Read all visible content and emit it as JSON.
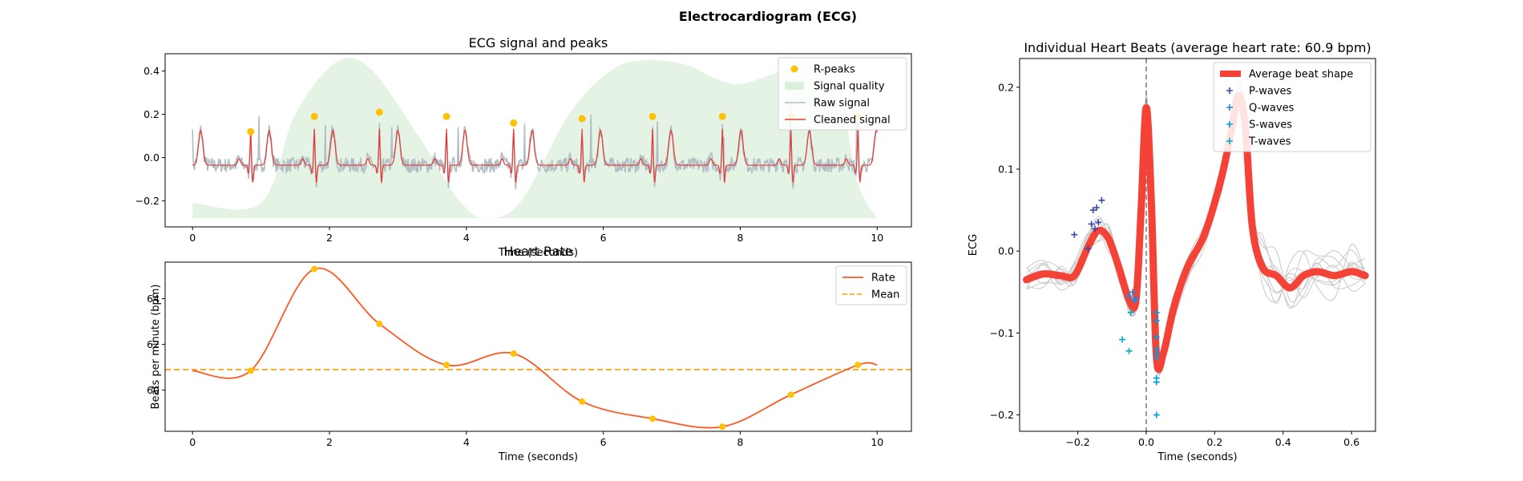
{
  "figure": {
    "title": "Electrocardiogram (ECG)"
  },
  "chart_data": [
    {
      "id": "ecg",
      "type": "line",
      "title": "ECG signal and peaks",
      "xlabel": "Time (seconds)",
      "ylabel": "",
      "xlim": [
        -0.4,
        10.5
      ],
      "ylim": [
        -0.32,
        0.48
      ],
      "xticks": [
        0,
        2,
        4,
        6,
        8,
        10
      ],
      "yticks": [
        -0.2,
        0.0,
        0.2,
        0.4
      ],
      "xtick_labels": [
        "0",
        "2",
        "4",
        "6",
        "8",
        "10"
      ],
      "ytick_labels": [
        "−0.2",
        "0.0",
        "0.2",
        "0.4"
      ],
      "legend": {
        "position": "upper right",
        "entries": [
          "R-peaks",
          "Signal quality",
          "Raw signal",
          "Cleaned signal"
        ]
      },
      "colors": {
        "r_peaks": "#FFC107",
        "quality": "#DCEFDC",
        "raw": "#B0BEC5",
        "cleaned": "#E53935"
      },
      "r_peaks": {
        "x": [
          0.85,
          1.78,
          2.73,
          3.71,
          4.69,
          5.69,
          6.72,
          7.74,
          8.74,
          9.72
        ],
        "y": [
          0.12,
          0.19,
          0.21,
          0.19,
          0.16,
          0.18,
          0.19,
          0.19,
          0.19,
          0.19
        ]
      },
      "quality_shape": {
        "x": [
          0.0,
          1.0,
          1.5,
          2.1,
          2.6,
          3.3,
          3.9,
          4.3,
          4.8,
          5.5,
          6.1,
          6.6,
          7.2,
          7.6,
          8.0,
          8.6,
          9.0,
          9.4,
          9.7,
          10.0
        ],
        "y": [
          -0.21,
          -0.21,
          0.2,
          0.44,
          0.41,
          0.1,
          -0.2,
          -0.28,
          -0.2,
          0.2,
          0.4,
          0.45,
          0.43,
          0.37,
          0.34,
          0.4,
          0.44,
          0.4,
          -0.1,
          -0.28
        ]
      }
    },
    {
      "id": "rate",
      "type": "line",
      "title": "Heart Rate",
      "xlabel": "Time (seconds)",
      "ylabel": "Beats per minute (bpm)",
      "xlim": [
        -0.4,
        10.5
      ],
      "ylim": [
        58.2,
        65.6
      ],
      "xticks": [
        0,
        2,
        4,
        6,
        8,
        10
      ],
      "yticks": [
        60,
        62,
        64
      ],
      "xtick_labels": [
        "0",
        "2",
        "4",
        "6",
        "8",
        "10"
      ],
      "ytick_labels": [
        "60",
        "62",
        "64"
      ],
      "legend": {
        "position": "upper right",
        "entries": [
          "Rate",
          "Mean"
        ]
      },
      "colors": {
        "rate": "#FF5722",
        "mean": "#FF9800",
        "markers": "#FFC107"
      },
      "mean": 60.9,
      "series": [
        {
          "name": "Rate",
          "x": [
            0.0,
            0.85,
            1.78,
            2.73,
            3.71,
            4.69,
            5.69,
            6.72,
            7.74,
            8.74,
            9.72,
            10.0
          ],
          "y": [
            60.85,
            60.85,
            65.3,
            62.9,
            61.1,
            61.6,
            59.5,
            58.75,
            58.4,
            59.8,
            61.1,
            61.1
          ]
        }
      ],
      "points": {
        "x": [
          0.85,
          1.78,
          2.73,
          3.71,
          4.69,
          5.69,
          6.72,
          7.74,
          8.74,
          9.72
        ],
        "y": [
          60.85,
          65.3,
          62.9,
          61.1,
          61.6,
          59.5,
          58.75,
          58.4,
          59.8,
          61.1
        ]
      }
    },
    {
      "id": "beats",
      "type": "line",
      "title": "Individual Heart Beats (average heart rate: 60.9 bpm)",
      "xlabel": "Time (seconds)",
      "ylabel": "ECG",
      "xlim": [
        -0.37,
        0.67
      ],
      "ylim": [
        -0.22,
        0.235
      ],
      "xticks": [
        -0.2,
        0.0,
        0.2,
        0.4,
        0.6
      ],
      "yticks": [
        -0.2,
        -0.1,
        0.0,
        0.1,
        0.2
      ],
      "xtick_labels": [
        "−0.2",
        "0.0",
        "0.2",
        "0.4",
        "0.6"
      ],
      "ytick_labels": [
        "−0.2",
        "−0.1",
        "0.0",
        "0.1",
        "0.2"
      ],
      "legend": {
        "position": "upper right",
        "entries": [
          "Average beat shape",
          "P-waves",
          "Q-waves",
          "S-waves",
          "T-waves"
        ]
      },
      "colors": {
        "average": "#F44336",
        "p": "#3949AB",
        "q": "#1E88E5",
        "s": "#039BE5",
        "t": "#00ACC1",
        "beats": "#C8C8C8",
        "vline": "#777777"
      },
      "average_beat": {
        "x": [
          -0.35,
          -0.3,
          -0.25,
          -0.21,
          -0.17,
          -0.14,
          -0.11,
          -0.08,
          -0.05,
          -0.03,
          -0.015,
          0.0,
          0.015,
          0.03,
          0.05,
          0.08,
          0.12,
          0.17,
          0.22,
          0.25,
          0.27,
          0.29,
          0.31,
          0.34,
          0.38,
          0.42,
          0.46,
          0.5,
          0.55,
          0.6,
          0.64
        ],
        "y": [
          -0.035,
          -0.028,
          -0.03,
          -0.03,
          0.005,
          0.025,
          0.015,
          -0.02,
          -0.06,
          -0.06,
          0.05,
          0.175,
          0.06,
          -0.13,
          -0.125,
          -0.07,
          -0.02,
          0.02,
          0.09,
          0.15,
          0.19,
          0.15,
          0.03,
          -0.02,
          -0.03,
          -0.045,
          -0.03,
          -0.025,
          -0.03,
          -0.025,
          -0.03
        ]
      },
      "p_waves": {
        "x": [
          -0.21,
          -0.17,
          -0.16,
          -0.155,
          -0.15,
          -0.145,
          -0.14,
          -0.13
        ],
        "y": [
          0.02,
          0.003,
          0.033,
          0.05,
          0.027,
          0.053,
          0.035,
          0.062
        ]
      },
      "q_waves": {
        "x": [
          -0.04,
          -0.05,
          -0.03,
          -0.035
        ],
        "y": [
          -0.05,
          -0.055,
          -0.058,
          -0.06
        ]
      },
      "s_waves": {
        "x": [
          0.03,
          0.03,
          0.03,
          0.03,
          0.03,
          0.03,
          0.03,
          0.03,
          0.03,
          0.03
        ],
        "y": [
          -0.2,
          -0.16,
          -0.155,
          -0.13,
          -0.125,
          -0.12,
          -0.085,
          -0.075,
          -0.12,
          -0.105
        ]
      },
      "t_waves": {
        "x": [
          -0.07,
          -0.05,
          -0.045
        ],
        "y": [
          -0.108,
          -0.122,
          -0.075
        ]
      }
    }
  ]
}
